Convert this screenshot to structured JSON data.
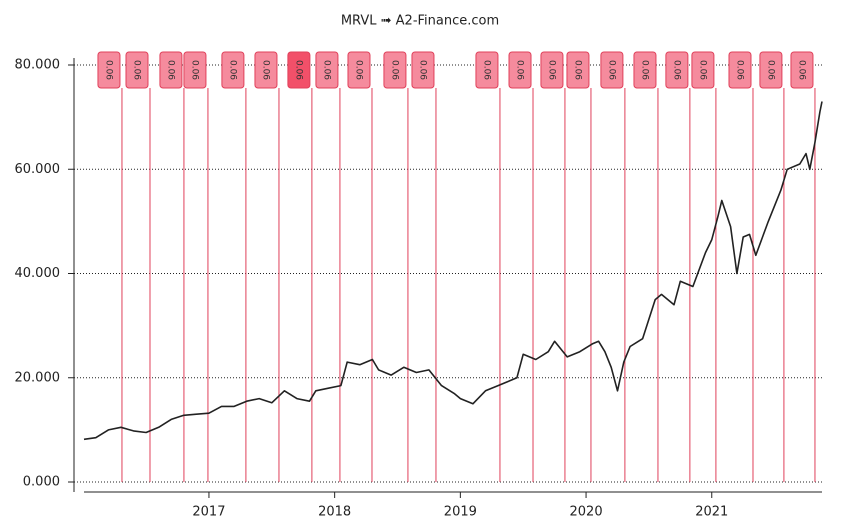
{
  "chart_data": {
    "type": "line",
    "title": "MRVL ➟ A2-Finance.com",
    "xlim": [
      2016.006,
      2021.877
    ],
    "xticks": [
      2017,
      2018,
      2019,
      2020,
      2021
    ],
    "ylim": [
      0,
      80
    ],
    "yticks": [
      {
        "value": 0,
        "label": "0.000"
      },
      {
        "value": 20,
        "label": "20.000"
      },
      {
        "value": 40,
        "label": "40.000"
      },
      {
        "value": 60,
        "label": "60.000"
      },
      {
        "value": 80,
        "label": "80.000"
      }
    ],
    "grid": true,
    "series": [
      {
        "color": "#222222",
        "x": [
          2016.006,
          2016.1,
          2016.2,
          2016.3,
          2016.4,
          2016.5,
          2016.6,
          2016.7,
          2016.8,
          2016.9,
          2017.0,
          2017.1,
          2017.2,
          2017.3,
          2017.4,
          2017.5,
          2017.6,
          2017.7,
          2017.8,
          2017.85,
          2017.95,
          2018.05,
          2018.1,
          2018.2,
          2018.3,
          2018.35,
          2018.45,
          2018.55,
          2018.65,
          2018.75,
          2018.85,
          2018.95,
          2019.0,
          2019.1,
          2019.2,
          2019.3,
          2019.45,
          2019.5,
          2019.6,
          2019.7,
          2019.75,
          2019.85,
          2019.95,
          2020.05,
          2020.1,
          2020.15,
          2020.2,
          2020.25,
          2020.3,
          2020.35,
          2020.45,
          2020.55,
          2020.6,
          2020.7,
          2020.75,
          2020.8,
          2020.85,
          2020.95,
          2021.0,
          2021.05,
          2021.08,
          2021.15,
          2021.2,
          2021.25,
          2021.3,
          2021.35,
          2021.45,
          2021.55,
          2021.6,
          2021.7,
          2021.75,
          2021.78,
          2021.82,
          2021.86,
          2021.877
        ],
        "values": [
          8.2,
          8.5,
          10.0,
          10.5,
          9.8,
          9.5,
          10.5,
          12.0,
          12.8,
          13.0,
          13.2,
          14.5,
          14.5,
          15.5,
          16.0,
          15.2,
          17.5,
          16.0,
          15.5,
          17.5,
          18.0,
          18.5,
          23.0,
          22.5,
          23.5,
          21.5,
          20.5,
          22.0,
          21.0,
          21.5,
          18.5,
          17.0,
          16.0,
          15.0,
          17.5,
          18.5,
          20.0,
          24.5,
          23.5,
          25.0,
          27.0,
          24.0,
          25.0,
          26.5,
          27.0,
          25.0,
          22.0,
          17.5,
          23.0,
          26.0,
          27.5,
          35.0,
          36.0,
          34.0,
          38.5,
          38.0,
          37.5,
          44.0,
          46.5,
          51.0,
          54.0,
          49.0,
          40.0,
          47.0,
          47.5,
          43.5,
          50.0,
          56.0,
          60.0,
          61.0,
          63.0,
          60.0,
          65.0,
          71.0,
          73.0
        ]
      }
    ],
    "dividends": {
      "x": [
        2016.308,
        2016.531,
        2016.801,
        2016.992,
        2017.294,
        2017.557,
        2017.819,
        2018.042,
        2018.297,
        2018.583,
        2018.806,
        2019.315,
        2019.578,
        2019.832,
        2020.039,
        2020.309,
        2020.572,
        2020.826,
        2021.033,
        2021.328,
        2021.574,
        2021.821
      ],
      "values": [
        0.06,
        0.06,
        0.06,
        0.06,
        0.06,
        0.06,
        0.06,
        0.06,
        0.06,
        0.06,
        0.06,
        0.06,
        0.06,
        0.06,
        0.06,
        0.06,
        0.06,
        0.06,
        0.06,
        0.06,
        0.06,
        0.06
      ],
      "colors": [
        "#f58b9d",
        "#f58b9d",
        "#f58b9d",
        "#f58b9d",
        "#f58b9d",
        "#f58b9d",
        "#f25069",
        "#f58b9d",
        "#f58b9d",
        "#f58b9d",
        "#f58b9d",
        "#f58b9d",
        "#f58b9d",
        "#f58b9d",
        "#f58b9d",
        "#f58b9d",
        "#f58b9d",
        "#f58b9d",
        "#f58b9d",
        "#f58b9d",
        "#f58b9d",
        "#f58b9d"
      ],
      "line_color": "#e0405a"
    }
  }
}
